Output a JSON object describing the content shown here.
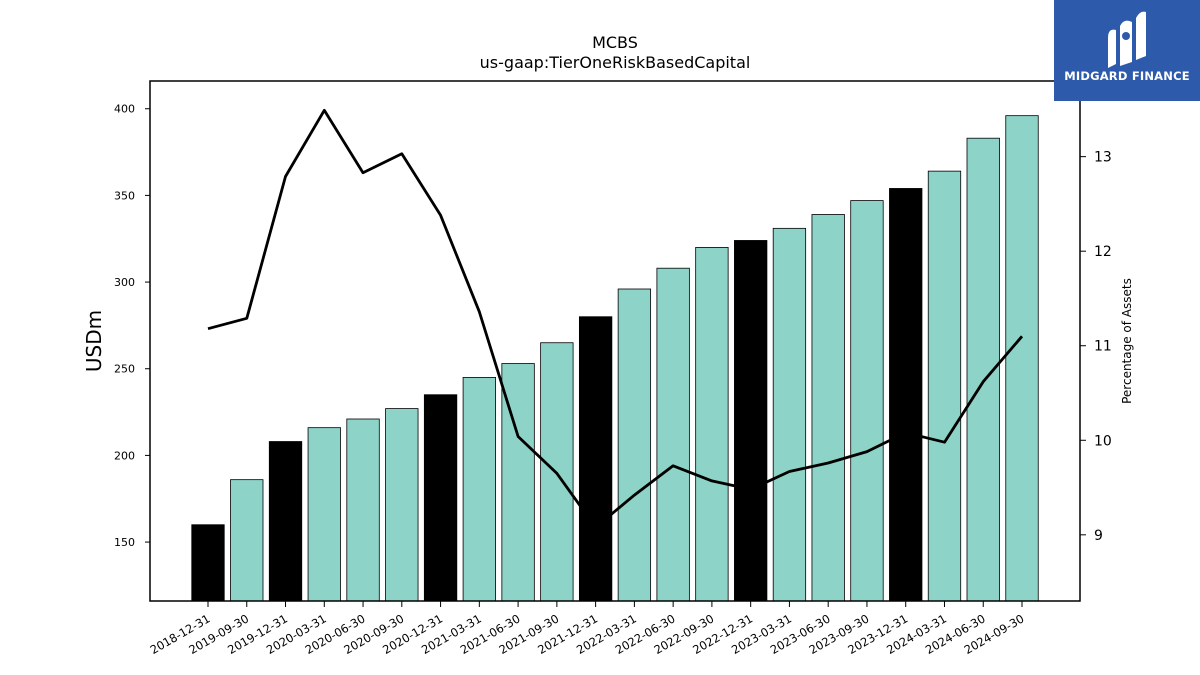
{
  "chart_data": {
    "type": "bar+line",
    "title": "MCBS",
    "subtitle": "us-gaap:TierOneRiskBasedCapital",
    "ylabel_left": "USDm",
    "ylabel_right": "Percentage of Assets",
    "categories": [
      "2018-12-31",
      "2019-09-30",
      "2019-12-31",
      "2020-03-31",
      "2020-06-30",
      "2020-09-30",
      "2020-12-31",
      "2021-03-31",
      "2021-06-30",
      "2021-09-30",
      "2021-12-31",
      "2022-03-31",
      "2022-06-30",
      "2022-09-30",
      "2022-12-31",
      "2023-03-31",
      "2023-06-30",
      "2023-09-30",
      "2023-12-31",
      "2024-03-31",
      "2024-06-30",
      "2024-09-30"
    ],
    "series": [
      {
        "axis": "left",
        "kind": "bar",
        "values": [
          160,
          186,
          208,
          216,
          221,
          227,
          235,
          245,
          253,
          265,
          280,
          296,
          308,
          320,
          324,
          331,
          339,
          347,
          354,
          364,
          383,
          396
        ]
      },
      {
        "axis": "right",
        "kind": "line",
        "values": [
          11.18,
          11.29,
          12.79,
          13.49,
          12.83,
          13.03,
          12.38,
          11.36,
          10.04,
          9.65,
          9.08,
          9.42,
          9.73,
          9.57,
          9.48,
          9.67,
          9.76,
          9.88,
          10.08,
          9.98,
          10.62,
          11.1
        ]
      }
    ],
    "year_end_highlight": [
      true,
      false,
      true,
      false,
      false,
      false,
      true,
      false,
      false,
      false,
      true,
      false,
      false,
      false,
      true,
      false,
      false,
      false,
      true,
      false,
      false,
      false
    ],
    "ylim_left": [
      116,
      416
    ],
    "ylim_right": [
      8.3,
      13.8
    ],
    "yticks_left": [
      150,
      200,
      250,
      300,
      350,
      400
    ],
    "yticks_right": [
      9,
      10,
      11,
      12,
      13
    ],
    "colors": {
      "bar": "#8dd3c7",
      "bar_highlight": "#000000",
      "line": "#000000"
    },
    "grid": false
  },
  "logo": {
    "text": "MIDGARD FINANCE"
  }
}
